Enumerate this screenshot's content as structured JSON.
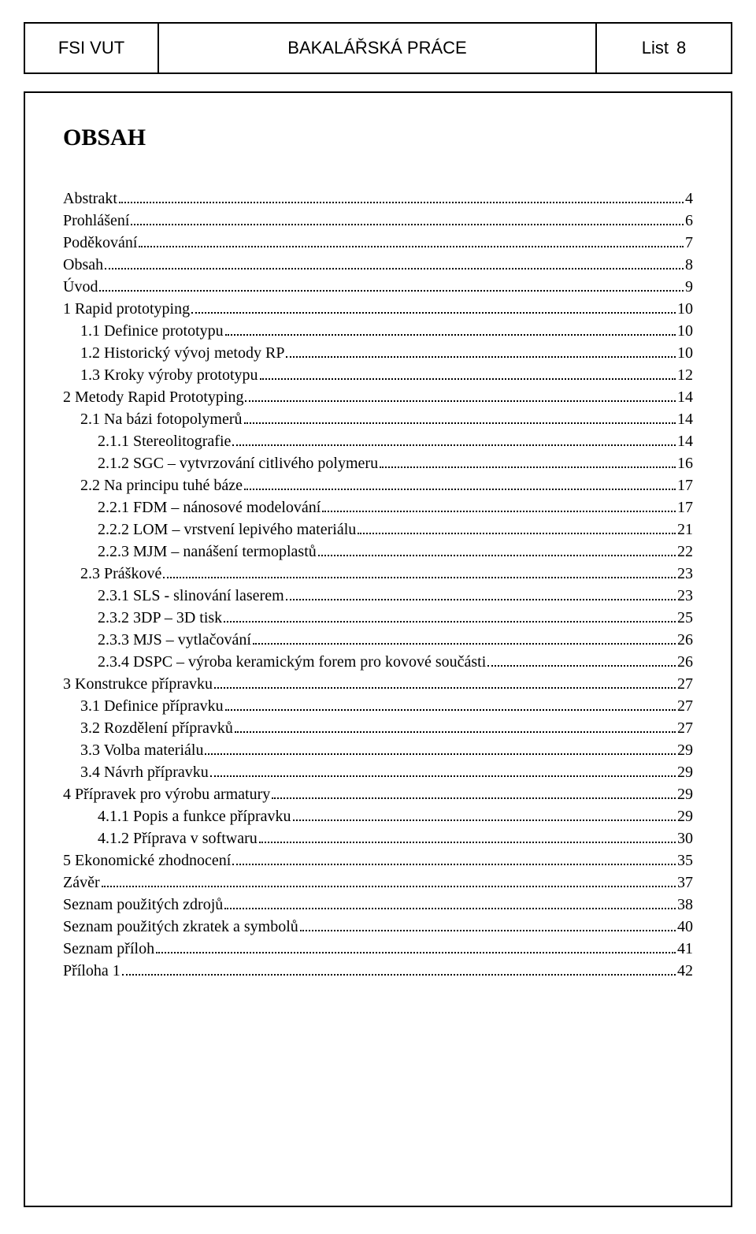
{
  "header": {
    "left": "FSI VUT",
    "mid": "BAKALÁŘSKÁ PRÁCE",
    "right_label": "List",
    "right_num": "8"
  },
  "heading": "OBSAH",
  "font": {
    "body_family": "Times New Roman",
    "header_family": "Arial",
    "heading_size_pt": 22,
    "toc_size_pt": 15
  },
  "colors": {
    "text": "#000000",
    "border": "#000000",
    "background": "#ffffff"
  },
  "toc": [
    {
      "label": "Abstrakt",
      "page": "4",
      "indent": 0
    },
    {
      "label": "Prohlášení",
      "page": "6",
      "indent": 0
    },
    {
      "label": "Poděkování",
      "page": "7",
      "indent": 0
    },
    {
      "label": "Obsah",
      "page": "8",
      "indent": 0
    },
    {
      "label": "Úvod",
      "page": "9",
      "indent": 0
    },
    {
      "label": "1  Rapid prototyping",
      "page": "10",
      "indent": 0
    },
    {
      "label": "1.1 Definice prototypu",
      "page": "10",
      "indent": 1
    },
    {
      "label": "1.2 Historický vývoj metody RP",
      "page": "10",
      "indent": 1
    },
    {
      "label": "1.3 Kroky výroby prototypu",
      "page": "12",
      "indent": 1
    },
    {
      "label": "2  Metody Rapid Prototyping",
      "page": "14",
      "indent": 0
    },
    {
      "label": "2.1 Na bázi fotopolymerů",
      "page": "14",
      "indent": 1
    },
    {
      "label": "2.1.1 Stereolitografie",
      "page": "14",
      "indent": 2
    },
    {
      "label": "2.1.2 SGC – vytvrzování citlivého polymeru",
      "page": "16",
      "indent": 2
    },
    {
      "label": "2.2 Na principu tuhé báze",
      "page": "17",
      "indent": 1
    },
    {
      "label": "2.2.1 FDM – nánosové modelování",
      "page": "17",
      "indent": 2
    },
    {
      "label": "2.2.2 LOM – vrstvení lepivého materiálu",
      "page": "21",
      "indent": 2
    },
    {
      "label": "2.2.3 MJM – nanášení termoplastů",
      "page": "22",
      "indent": 2
    },
    {
      "label": "2.3 Práškové",
      "page": "23",
      "indent": 1
    },
    {
      "label": "2.3.1 SLS -  slinování laserem",
      "page": "23",
      "indent": 2
    },
    {
      "label": "2.3.2 3DP – 3D tisk",
      "page": "25",
      "indent": 2
    },
    {
      "label": "2.3.3 MJS – vytlačování",
      "page": "26",
      "indent": 2
    },
    {
      "label": "2.3.4 DSPC – výroba keramickým forem pro kovové součásti",
      "page": "26",
      "indent": 2
    },
    {
      "label": "3  Konstrukce přípravku",
      "page": "27",
      "indent": 0
    },
    {
      "label": "3.1 Definice přípravku",
      "page": "27",
      "indent": 1
    },
    {
      "label": "3.2 Rozdělení přípravků",
      "page": "27",
      "indent": 1
    },
    {
      "label": "3.3 Volba materiálu",
      "page": "29",
      "indent": 1
    },
    {
      "label": "3.4 Návrh přípravku",
      "page": "29",
      "indent": 1
    },
    {
      "label": "4  Přípravek pro výrobu armatury",
      "page": "29",
      "indent": 0
    },
    {
      "label": "4.1.1 Popis a funkce přípravku",
      "page": "29",
      "indent": 2
    },
    {
      "label": "4.1.2 Příprava v softwaru",
      "page": "30",
      "indent": 2
    },
    {
      "label": "5  Ekonomické zhodnocení",
      "page": "35",
      "indent": 0
    },
    {
      "label": "Závěr",
      "page": "37",
      "indent": 0
    },
    {
      "label": "Seznam použitých zdrojů",
      "page": "38",
      "indent": 0
    },
    {
      "label": "Seznam použitých zkratek a symbolů",
      "page": "40",
      "indent": 0
    },
    {
      "label": "Seznam příloh",
      "page": "41",
      "indent": 0
    },
    {
      "label": "Příloha 1",
      "page": "42",
      "indent": 0
    }
  ]
}
